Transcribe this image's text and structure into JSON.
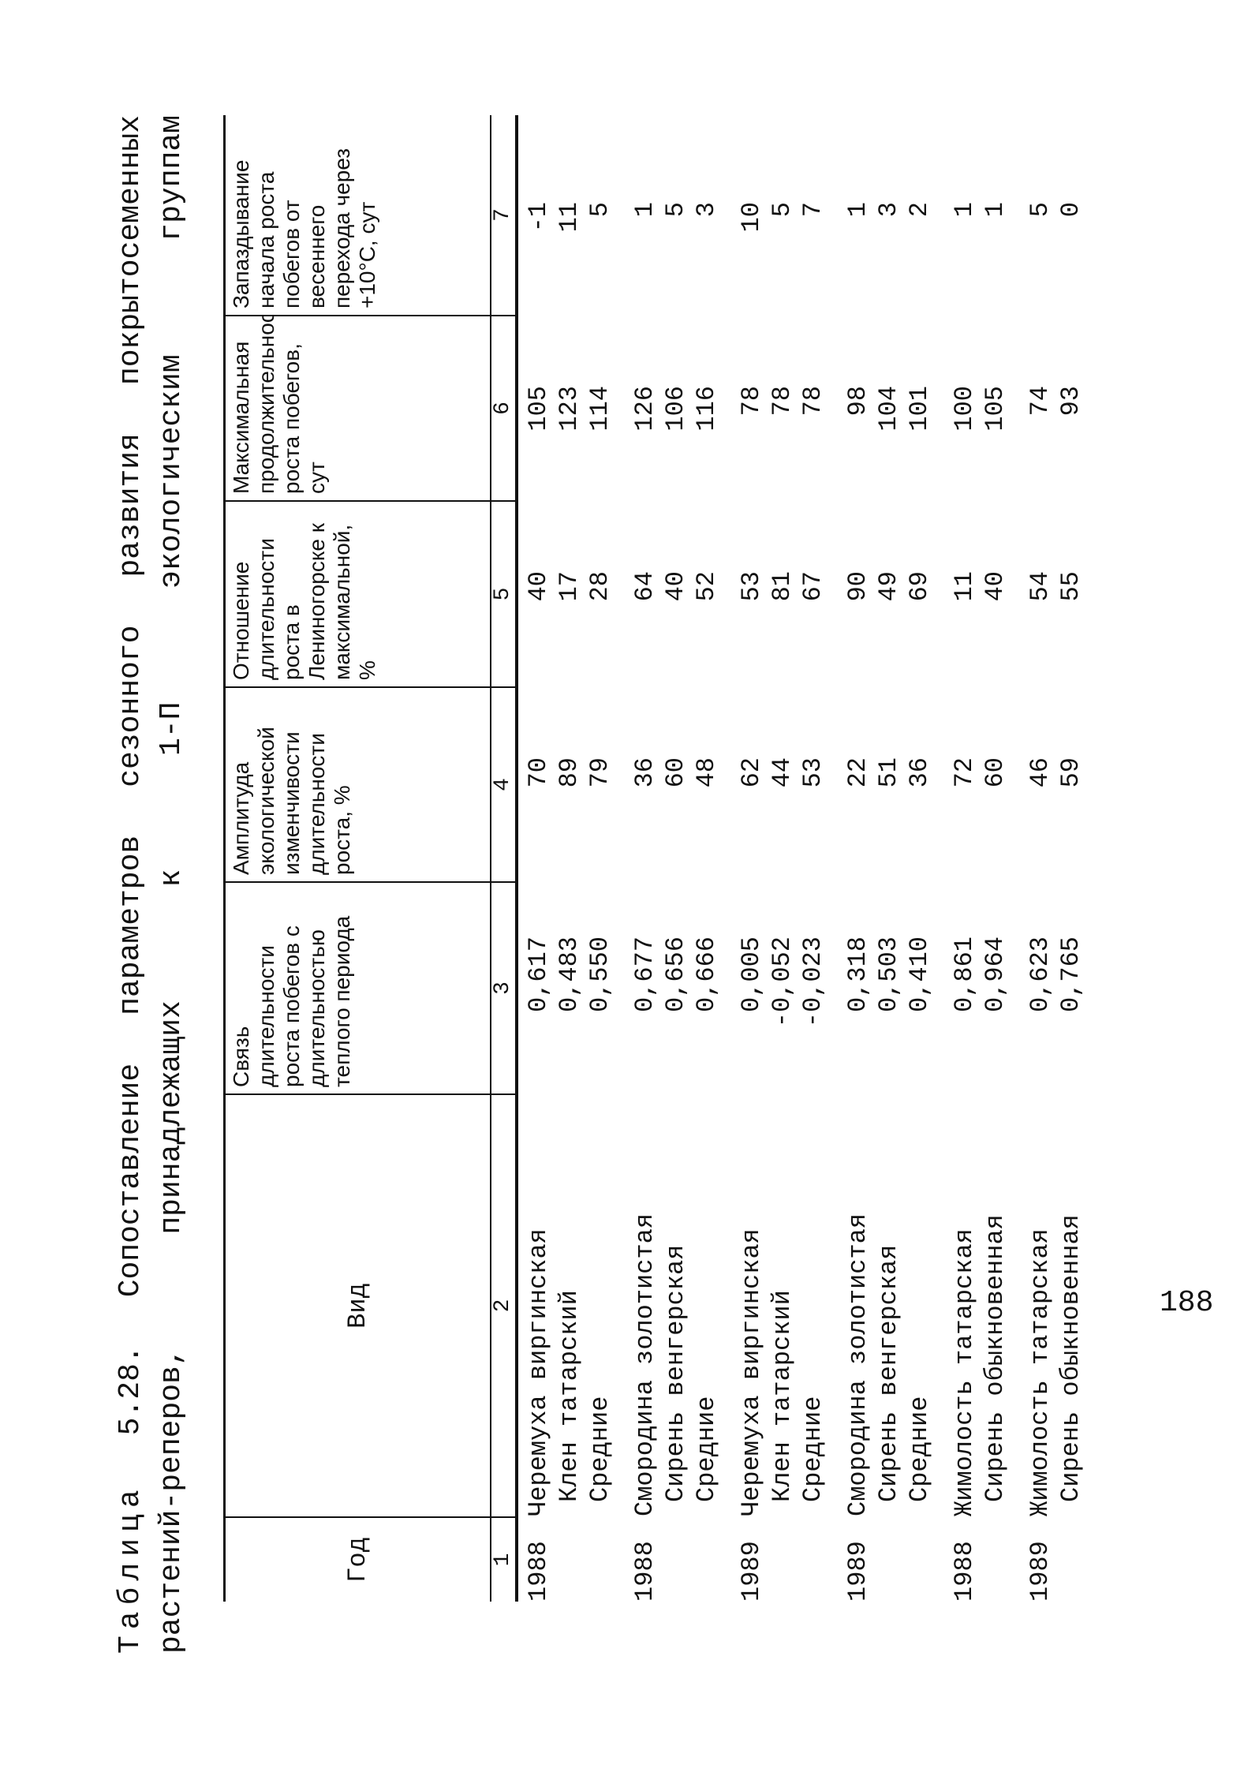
{
  "title": {
    "label": "Таблица",
    "line1": [
      "5.28.",
      "Сопоставление",
      "параметров",
      "сезонного",
      "развития",
      "покрытосеменных"
    ],
    "line2": [
      "растений-реперов,",
      "принадлежащих",
      "к",
      "1-П",
      "экологическим",
      "группам"
    ]
  },
  "headers": [
    "Год",
    "Вид",
    "Связь длительности роста побегов с длительностью теплого периода",
    "Амплитуда экологической изменчивости длительности роста, %",
    "Отношение длительности роста в Лениногорске к максимальной, %",
    "Максимальная продолжительность роста побегов, сут",
    "Запаздывание начала роста побегов от весеннего перехода через +10°С, сут"
  ],
  "column_numbers": [
    "1",
    "2",
    "3",
    "4",
    "5",
    "6",
    "7"
  ],
  "rows": [
    {
      "year": "1988",
      "species": "Черемуха виргинская",
      "c3": "0,617",
      "c4": "70",
      "c5": "40",
      "c6": "105",
      "c7": "-1"
    },
    {
      "year": "",
      "species": "Клен татарский",
      "c3": "0,483",
      "c4": "89",
      "c5": "17",
      "c6": "123",
      "c7": "11"
    },
    {
      "year": "",
      "species": "Средние",
      "c3": "0,550",
      "c4": "79",
      "c5": "28",
      "c6": "114",
      "c7": "5"
    },
    {
      "year": "1988",
      "species": "Смородина золотистая",
      "c3": "0,677",
      "c4": "36",
      "c5": "64",
      "c6": "126",
      "c7": "1"
    },
    {
      "year": "",
      "species": "Сирень венгерская",
      "c3": "0,656",
      "c4": "60",
      "c5": "40",
      "c6": "106",
      "c7": "5"
    },
    {
      "year": "",
      "species": "Средние",
      "c3": "0,666",
      "c4": "48",
      "c5": "52",
      "c6": "116",
      "c7": "3"
    },
    {
      "year": "1989",
      "species": "Черемуха виргинская",
      "c3": "0,005",
      "c4": "62",
      "c5": "53",
      "c6": "78",
      "c7": "10"
    },
    {
      "year": "",
      "species": "Клен татарский",
      "c3": "-0,052",
      "c4": "44",
      "c5": "81",
      "c6": "78",
      "c7": "5"
    },
    {
      "year": "",
      "species": "Средние",
      "c3": "-0,023",
      "c4": "53",
      "c5": "67",
      "c6": "78",
      "c7": "7"
    },
    {
      "year": "1989",
      "species": "Смородина золотистая",
      "c3": "0,318",
      "c4": "22",
      "c5": "90",
      "c6": "98",
      "c7": "1"
    },
    {
      "year": "",
      "species": "Сирень венгерская",
      "c3": "0,503",
      "c4": "51",
      "c5": "49",
      "c6": "104",
      "c7": "3"
    },
    {
      "year": "",
      "species": "Средние",
      "c3": "0,410",
      "c4": "36",
      "c5": "69",
      "c6": "101",
      "c7": "2"
    },
    {
      "year": "1988",
      "species": "Жимолость татарская",
      "c3": "0,861",
      "c4": "72",
      "c5": "11",
      "c6": "100",
      "c7": "1"
    },
    {
      "year": "",
      "species": "Сирень обыкновенная",
      "c3": "0,964",
      "c4": "60",
      "c5": "40",
      "c6": "105",
      "c7": "1"
    },
    {
      "year": "1989",
      "species": "Жимолость татарская",
      "c3": "0,623",
      "c4": "46",
      "c5": "54",
      "c6": "74",
      "c7": "5"
    },
    {
      "year": "",
      "species": "Сирень обыкновенная",
      "c3": "0,765",
      "c4": "59",
      "c5": "55",
      "c6": "93",
      "c7": "0"
    }
  ],
  "page_number": "188"
}
